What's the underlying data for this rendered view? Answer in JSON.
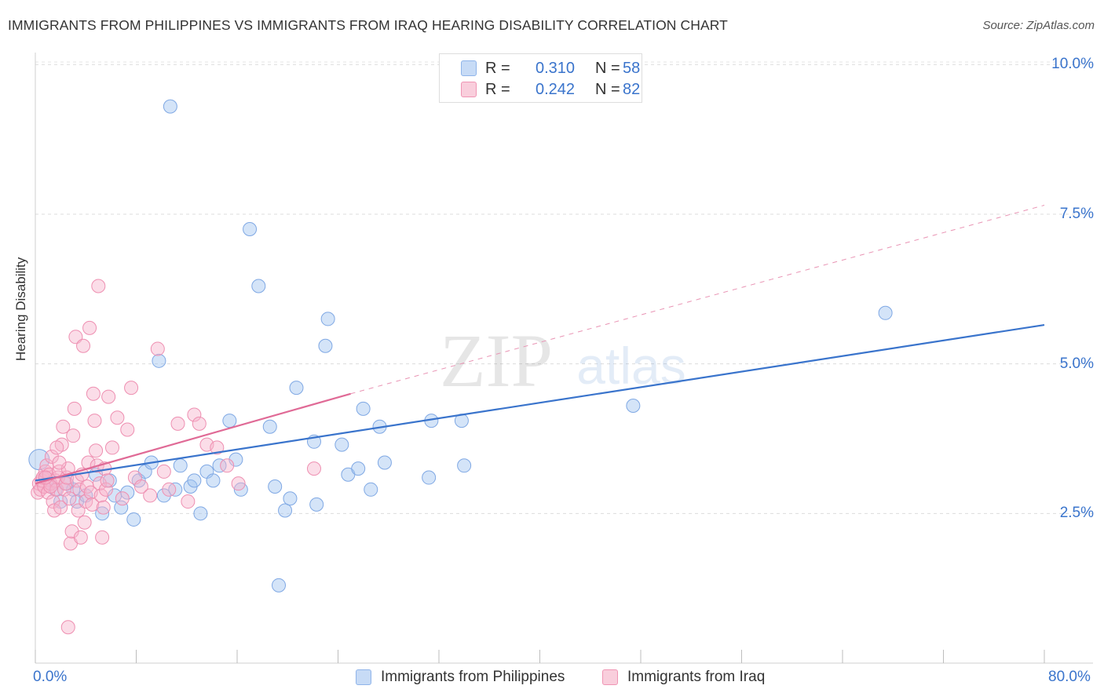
{
  "header": {
    "title": "IMMIGRANTS FROM PHILIPPINES VS IMMIGRANTS FROM IRAQ HEARING DISABILITY CORRELATION CHART",
    "source": "Source: ZipAtlas.com"
  },
  "watermark": {
    "zip": "ZIP",
    "atlas": "atlas"
  },
  "legend": {
    "series": [
      {
        "r_label": "R =",
        "r_value": "0.310",
        "n_label": "N =",
        "n_value": "58",
        "color": "#8fb4ea",
        "fill": "#c7dbf6"
      },
      {
        "r_label": "R =",
        "r_value": "0.242",
        "n_label": "N =",
        "n_value": "82",
        "color": "#f095b4",
        "fill": "#f9cedc"
      }
    ]
  },
  "bottom_legend": {
    "items": [
      {
        "label": "Immigrants from Philippines",
        "color": "#8fb4ea",
        "fill": "#c7dbf6"
      },
      {
        "label": "Immigrants from Iraq",
        "color": "#f095b4",
        "fill": "#f9cedc"
      }
    ]
  },
  "chart_data": {
    "type": "scatter",
    "title": "IMMIGRANTS FROM PHILIPPINES VS IMMIGRANTS FROM IRAQ HEARING DISABILITY CORRELATION CHART",
    "xlabel": "",
    "ylabel": "Hearing Disability",
    "xlim": [
      0,
      80
    ],
    "ylim": [
      0,
      10.2
    ],
    "x_tick_labels": [
      "0.0%",
      "80.0%"
    ],
    "y_ticks": [
      2.5,
      5.0,
      7.5,
      10.0
    ],
    "y_tick_labels": [
      "2.5%",
      "5.0%",
      "7.5%",
      "10.0%"
    ],
    "grid": true,
    "series": [
      {
        "name": "Immigrants from Philippines",
        "color": "#3a74cc",
        "points": [
          [
            0.3,
            3.4
          ],
          [
            0.8,
            3.1
          ],
          [
            1.2,
            3.0
          ],
          [
            1.6,
            2.9
          ],
          [
            2.0,
            2.7
          ],
          [
            2.5,
            3.0
          ],
          [
            3.0,
            2.9
          ],
          [
            3.3,
            2.7
          ],
          [
            4.0,
            2.8
          ],
          [
            4.8,
            3.15
          ],
          [
            5.3,
            2.5
          ],
          [
            5.9,
            3.05
          ],
          [
            6.3,
            2.8
          ],
          [
            6.8,
            2.6
          ],
          [
            7.3,
            2.85
          ],
          [
            7.8,
            2.4
          ],
          [
            8.2,
            3.05
          ],
          [
            8.7,
            3.2
          ],
          [
            9.2,
            3.35
          ],
          [
            10.2,
            2.8
          ],
          [
            10.7,
            9.3
          ],
          [
            11.1,
            2.9
          ],
          [
            9.8,
            5.05
          ],
          [
            11.5,
            3.3
          ],
          [
            12.3,
            2.95
          ],
          [
            12.6,
            3.05
          ],
          [
            13.1,
            2.5
          ],
          [
            13.6,
            3.2
          ],
          [
            14.1,
            3.05
          ],
          [
            14.6,
            3.3
          ],
          [
            15.4,
            4.05
          ],
          [
            15.9,
            3.4
          ],
          [
            16.3,
            2.9
          ],
          [
            17.0,
            7.25
          ],
          [
            17.7,
            6.3
          ],
          [
            18.6,
            3.95
          ],
          [
            19.0,
            2.95
          ],
          [
            19.8,
            2.55
          ],
          [
            20.2,
            2.75
          ],
          [
            20.7,
            4.6
          ],
          [
            22.1,
            3.7
          ],
          [
            22.3,
            2.65
          ],
          [
            23.0,
            5.3
          ],
          [
            23.2,
            5.75
          ],
          [
            24.3,
            3.65
          ],
          [
            24.8,
            3.15
          ],
          [
            25.6,
            3.25
          ],
          [
            26.0,
            4.25
          ],
          [
            26.6,
            2.9
          ],
          [
            27.3,
            3.95
          ],
          [
            27.7,
            3.35
          ],
          [
            31.2,
            3.1
          ],
          [
            31.4,
            4.05
          ],
          [
            33.8,
            4.05
          ],
          [
            34.0,
            3.3
          ],
          [
            47.4,
            4.3
          ],
          [
            67.4,
            5.85
          ],
          [
            19.3,
            1.3
          ]
        ],
        "trend": {
          "x0": 0,
          "y0": 3.05,
          "x1": 80,
          "y1": 5.65,
          "style": "solid"
        }
      },
      {
        "name": "Immigrants from Iraq",
        "color": "#e06a96",
        "points": [
          [
            0.2,
            2.85
          ],
          [
            0.3,
            3.0
          ],
          [
            0.4,
            2.9
          ],
          [
            0.5,
            3.05
          ],
          [
            0.6,
            3.1
          ],
          [
            0.7,
            2.95
          ],
          [
            0.8,
            3.2
          ],
          [
            0.9,
            3.3
          ],
          [
            1.0,
            2.85
          ],
          [
            1.1,
            3.15
          ],
          [
            1.2,
            3.0
          ],
          [
            1.3,
            3.45
          ],
          [
            1.4,
            2.7
          ],
          [
            1.5,
            2.55
          ],
          [
            1.6,
            3.05
          ],
          [
            1.7,
            2.9
          ],
          [
            1.8,
            3.1
          ],
          [
            1.9,
            3.2
          ],
          [
            2.0,
            2.6
          ],
          [
            2.1,
            3.65
          ],
          [
            2.2,
            3.95
          ],
          [
            2.3,
            2.9
          ],
          [
            2.4,
            3.0
          ],
          [
            2.5,
            3.1
          ],
          [
            2.6,
            3.25
          ],
          [
            2.7,
            2.75
          ],
          [
            2.8,
            2.0
          ],
          [
            2.9,
            2.2
          ],
          [
            3.0,
            3.8
          ],
          [
            3.1,
            4.25
          ],
          [
            3.2,
            5.45
          ],
          [
            3.3,
            3.05
          ],
          [
            3.4,
            2.55
          ],
          [
            3.5,
            2.9
          ],
          [
            3.6,
            2.1
          ],
          [
            3.7,
            3.15
          ],
          [
            3.8,
            5.3
          ],
          [
            3.9,
            2.35
          ],
          [
            4.0,
            2.7
          ],
          [
            4.1,
            2.95
          ],
          [
            4.2,
            3.35
          ],
          [
            4.3,
            5.6
          ],
          [
            4.4,
            2.85
          ],
          [
            4.5,
            2.65
          ],
          [
            4.6,
            4.5
          ],
          [
            4.7,
            4.05
          ],
          [
            4.8,
            3.55
          ],
          [
            4.9,
            3.3
          ],
          [
            5.0,
            6.3
          ],
          [
            5.1,
            3.0
          ],
          [
            5.2,
            2.8
          ],
          [
            5.3,
            2.1
          ],
          [
            5.4,
            2.6
          ],
          [
            5.5,
            3.25
          ],
          [
            5.6,
            2.9
          ],
          [
            5.7,
            3.05
          ],
          [
            5.8,
            4.45
          ],
          [
            6.1,
            3.6
          ],
          [
            6.5,
            4.1
          ],
          [
            6.9,
            2.75
          ],
          [
            7.3,
            3.9
          ],
          [
            7.6,
            4.6
          ],
          [
            7.9,
            3.1
          ],
          [
            8.4,
            2.95
          ],
          [
            9.1,
            2.8
          ],
          [
            9.7,
            5.25
          ],
          [
            10.2,
            3.2
          ],
          [
            10.6,
            2.9
          ],
          [
            11.3,
            4.0
          ],
          [
            12.1,
            2.7
          ],
          [
            12.6,
            4.15
          ],
          [
            13.0,
            4.0
          ],
          [
            13.6,
            3.65
          ],
          [
            14.4,
            3.6
          ],
          [
            15.2,
            3.3
          ],
          [
            16.1,
            3.0
          ],
          [
            2.6,
            0.6
          ],
          [
            1.7,
            3.6
          ],
          [
            1.2,
            2.95
          ],
          [
            0.8,
            3.1
          ],
          [
            22.1,
            3.25
          ],
          [
            1.9,
            3.35
          ]
        ],
        "trend": {
          "x0": 0,
          "y0": 3.0,
          "x1": 25,
          "y1": 4.5,
          "dash_to_x": 80,
          "dash_to_y": 7.65,
          "style": "solid-then-dashed"
        }
      }
    ]
  }
}
